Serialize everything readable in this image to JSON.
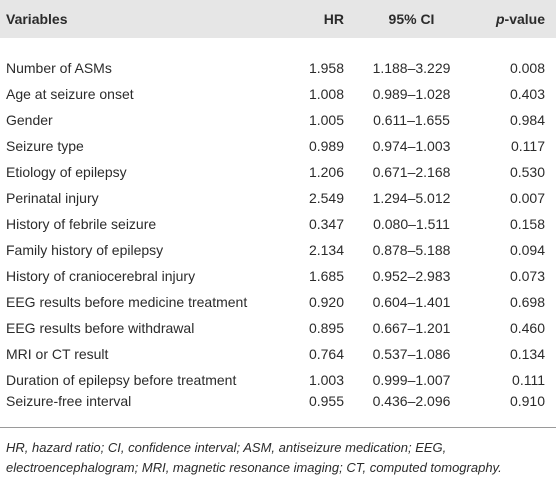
{
  "table": {
    "header": [
      "Variables",
      "HR",
      "95% CI",
      {
        "italic": "p",
        "text": "-value"
      }
    ],
    "rows": [
      [
        "Number of ASMs",
        "1.958",
        "1.188–3.229",
        "0.008"
      ],
      [
        "Age at seizure onset",
        "1.008",
        "0.989–1.028",
        "0.403"
      ],
      [
        "Gender",
        "1.005",
        "0.611–1.655",
        "0.984"
      ],
      [
        "Seizure type",
        "0.989",
        "0.974–1.003",
        "0.117"
      ],
      [
        "Etiology of epilepsy",
        "1.206",
        "0.671–2.168",
        "0.530"
      ],
      [
        "Perinatal injury",
        "2.549",
        "1.294–5.012",
        "0.007"
      ],
      [
        "History of febrile seizure",
        "0.347",
        "0.080–1.511",
        "0.158"
      ],
      [
        "Family history of epilepsy",
        "2.134",
        "0.878–5.188",
        "0.094"
      ],
      [
        "History of craniocerebral injury",
        "1.685",
        "0.952–2.983",
        "0.073"
      ],
      [
        "EEG results before medicine treatment",
        "0.920",
        "0.604–1.401",
        "0.698"
      ],
      [
        "EEG results before withdrawal",
        "0.895",
        "0.667–1.201",
        "0.460"
      ],
      [
        "MRI or CT result",
        "0.764",
        "0.537–1.086",
        "0.134"
      ],
      [
        "Duration of epilepsy before treatment",
        "1.003",
        "0.999–1.007",
        "0.111"
      ],
      [
        "Seizure-free interval",
        "0.955",
        "0.436–2.096",
        "0.910"
      ]
    ],
    "footnote": "HR, hazard ratio; CI, confidence interval; ASM, antiseizure medication; EEG, electroencephalogram; MRI, magnetic resonance imaging; CT, computed tomography."
  }
}
